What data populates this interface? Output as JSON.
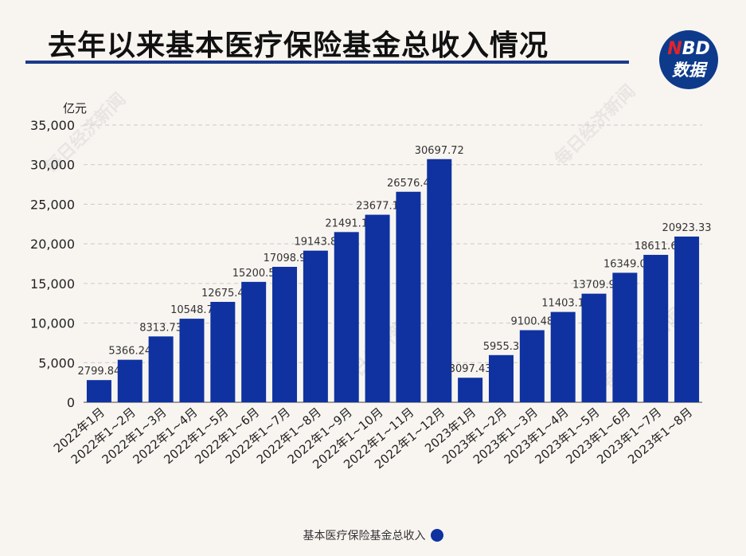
{
  "header": {
    "title": "去年以来基本医疗保险基金总收入情况",
    "logo_top": "NBD",
    "logo_bottom": "数据"
  },
  "watermark": "每日经济新闻",
  "colors": {
    "bar": "#0f32a0",
    "title_rule": "#1b3a8a",
    "logo_bg": "#0e3a8c",
    "logo_accent": "#e0242b"
  },
  "chart_data": {
    "type": "bar",
    "unit_label": "亿元",
    "ylim": [
      0,
      35000
    ],
    "yticks": [
      "0",
      "5,000",
      "10,000",
      "15,000",
      "20,000",
      "25,000",
      "30,000",
      "35,000"
    ],
    "grid": "horizontal-dashed",
    "legend_position": "bottom-center",
    "categories": [
      "2022年1月",
      "2022年1~2月",
      "2022年1~3月",
      "2022年1~4月",
      "2022年1~5月",
      "2022年1~6月",
      "2022年1~7月",
      "2022年1~8月",
      "2022年1~9月",
      "2022年1~10月",
      "2022年1~11月",
      "2022年1~12月",
      "2023年1月",
      "2023年1~2月",
      "2023年1~3月",
      "2023年1~4月",
      "2023年1~5月",
      "2023年1~6月",
      "2023年1~7月",
      "2023年1~8月"
    ],
    "series": [
      {
        "name": "基本医疗保险基金总收入",
        "values": [
          2799.84,
          5366.24,
          8313.73,
          10548.7,
          12675.4,
          15200.5,
          17098.9,
          19143.8,
          21491.1,
          23677.1,
          26576.4,
          30697.72,
          3097.43,
          5955.3,
          9100.48,
          11403.1,
          13709.9,
          16349.0,
          18611.6,
          20923.33
        ],
        "labels": [
          "2799.84",
          "5366.24",
          "8313.73",
          "10548.7",
          "12675.4",
          "15200.5",
          "17098.9",
          "19143.8",
          "21491.1",
          "23677.1",
          "26576.4",
          "30697.72",
          "3097.43",
          "5955.3",
          "9100.48",
          "11403.1",
          "13709.9",
          "16349.0",
          "18611.6",
          "20923.33"
        ]
      }
    ]
  }
}
